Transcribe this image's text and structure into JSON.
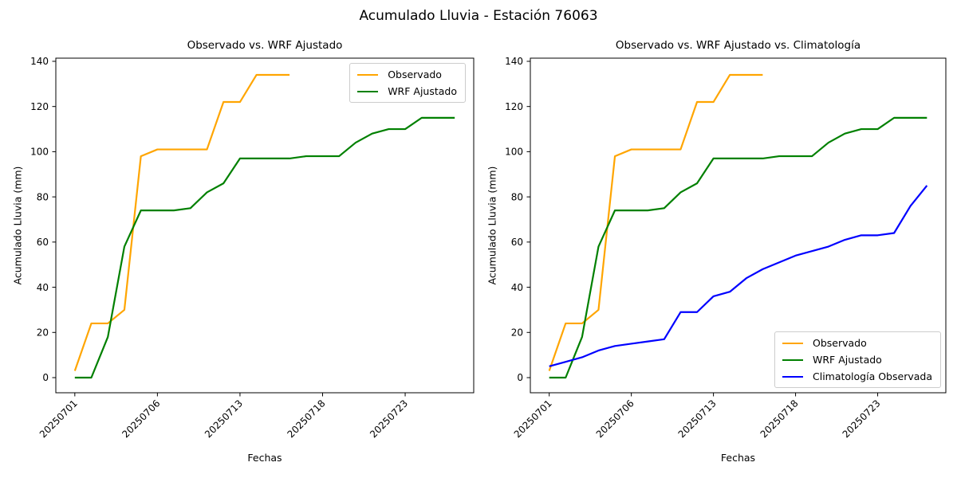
{
  "figure_title": "Acumulado Lluvia - Estación 76063",
  "axis": {
    "xlabel": "Fechas",
    "ylabel": "Acumulado Lluvia (mm)",
    "ytick_values": [
      0,
      20,
      40,
      60,
      80,
      100,
      120,
      140
    ],
    "xtick_labels": [
      "20250701",
      "20250706",
      "20250713",
      "20250718",
      "20250723"
    ],
    "xtick_positions": [
      0,
      5,
      10,
      15,
      20
    ]
  },
  "colors": {
    "observado": "#FFA500",
    "wrf_ajustado": "#008000",
    "climatologia": "#0000FF",
    "axes": "#000000",
    "legend_border": "#CCCCCC"
  },
  "chart_data": [
    {
      "type": "line",
      "title": "Observado vs. WRF Ajustado",
      "xlabel": "Fechas",
      "ylabel": "Acumulado Lluvia (mm)",
      "x_count": 24,
      "xtick_positions": [
        0,
        5,
        10,
        15,
        20
      ],
      "xtick_labels": [
        "20250701",
        "20250706",
        "20250713",
        "20250718",
        "20250723"
      ],
      "ytick_values": [
        0,
        20,
        40,
        60,
        80,
        100,
        120,
        140
      ],
      "ylim": [
        -6.7,
        141.4
      ],
      "grid": false,
      "legend_position": "upper right",
      "series": [
        {
          "name": "Observado",
          "color": "#FFA500",
          "values": [
            3,
            24,
            24,
            30,
            98,
            101,
            101,
            101,
            101,
            122,
            122,
            134,
            134,
            134
          ]
        },
        {
          "name": "WRF Ajustado",
          "color": "#008000",
          "values": [
            0,
            0,
            18,
            58,
            74,
            74,
            74,
            75,
            82,
            86,
            97,
            97,
            97,
            97,
            98,
            98,
            98,
            104,
            108,
            110,
            110,
            115,
            115,
            115
          ]
        }
      ]
    },
    {
      "type": "line",
      "title": "Observado vs. WRF Ajustado vs. Climatología",
      "xlabel": "Fechas",
      "ylabel": "Acumulado Lluvia (mm)",
      "x_count": 24,
      "xtick_positions": [
        0,
        5,
        10,
        15,
        20
      ],
      "xtick_labels": [
        "20250701",
        "20250706",
        "20250713",
        "20250718",
        "20250723"
      ],
      "ytick_values": [
        0,
        20,
        40,
        60,
        80,
        100,
        120,
        140
      ],
      "ylim": [
        -6.7,
        141.4
      ],
      "grid": false,
      "legend_position": "lower right",
      "series": [
        {
          "name": "Observado",
          "color": "#FFA500",
          "values": [
            3,
            24,
            24,
            30,
            98,
            101,
            101,
            101,
            101,
            122,
            122,
            134,
            134,
            134
          ]
        },
        {
          "name": "WRF Ajustado",
          "color": "#008000",
          "values": [
            0,
            0,
            18,
            58,
            74,
            74,
            74,
            75,
            82,
            86,
            97,
            97,
            97,
            97,
            98,
            98,
            98,
            104,
            108,
            110,
            110,
            115,
            115,
            115
          ]
        },
        {
          "name": "Climatología Observada",
          "color": "#0000FF",
          "values": [
            5,
            7,
            9,
            12,
            14,
            15,
            16,
            17,
            29,
            29,
            36,
            38,
            44,
            48,
            51,
            54,
            56,
            58,
            61,
            63,
            63,
            64,
            76,
            85
          ]
        }
      ]
    }
  ]
}
